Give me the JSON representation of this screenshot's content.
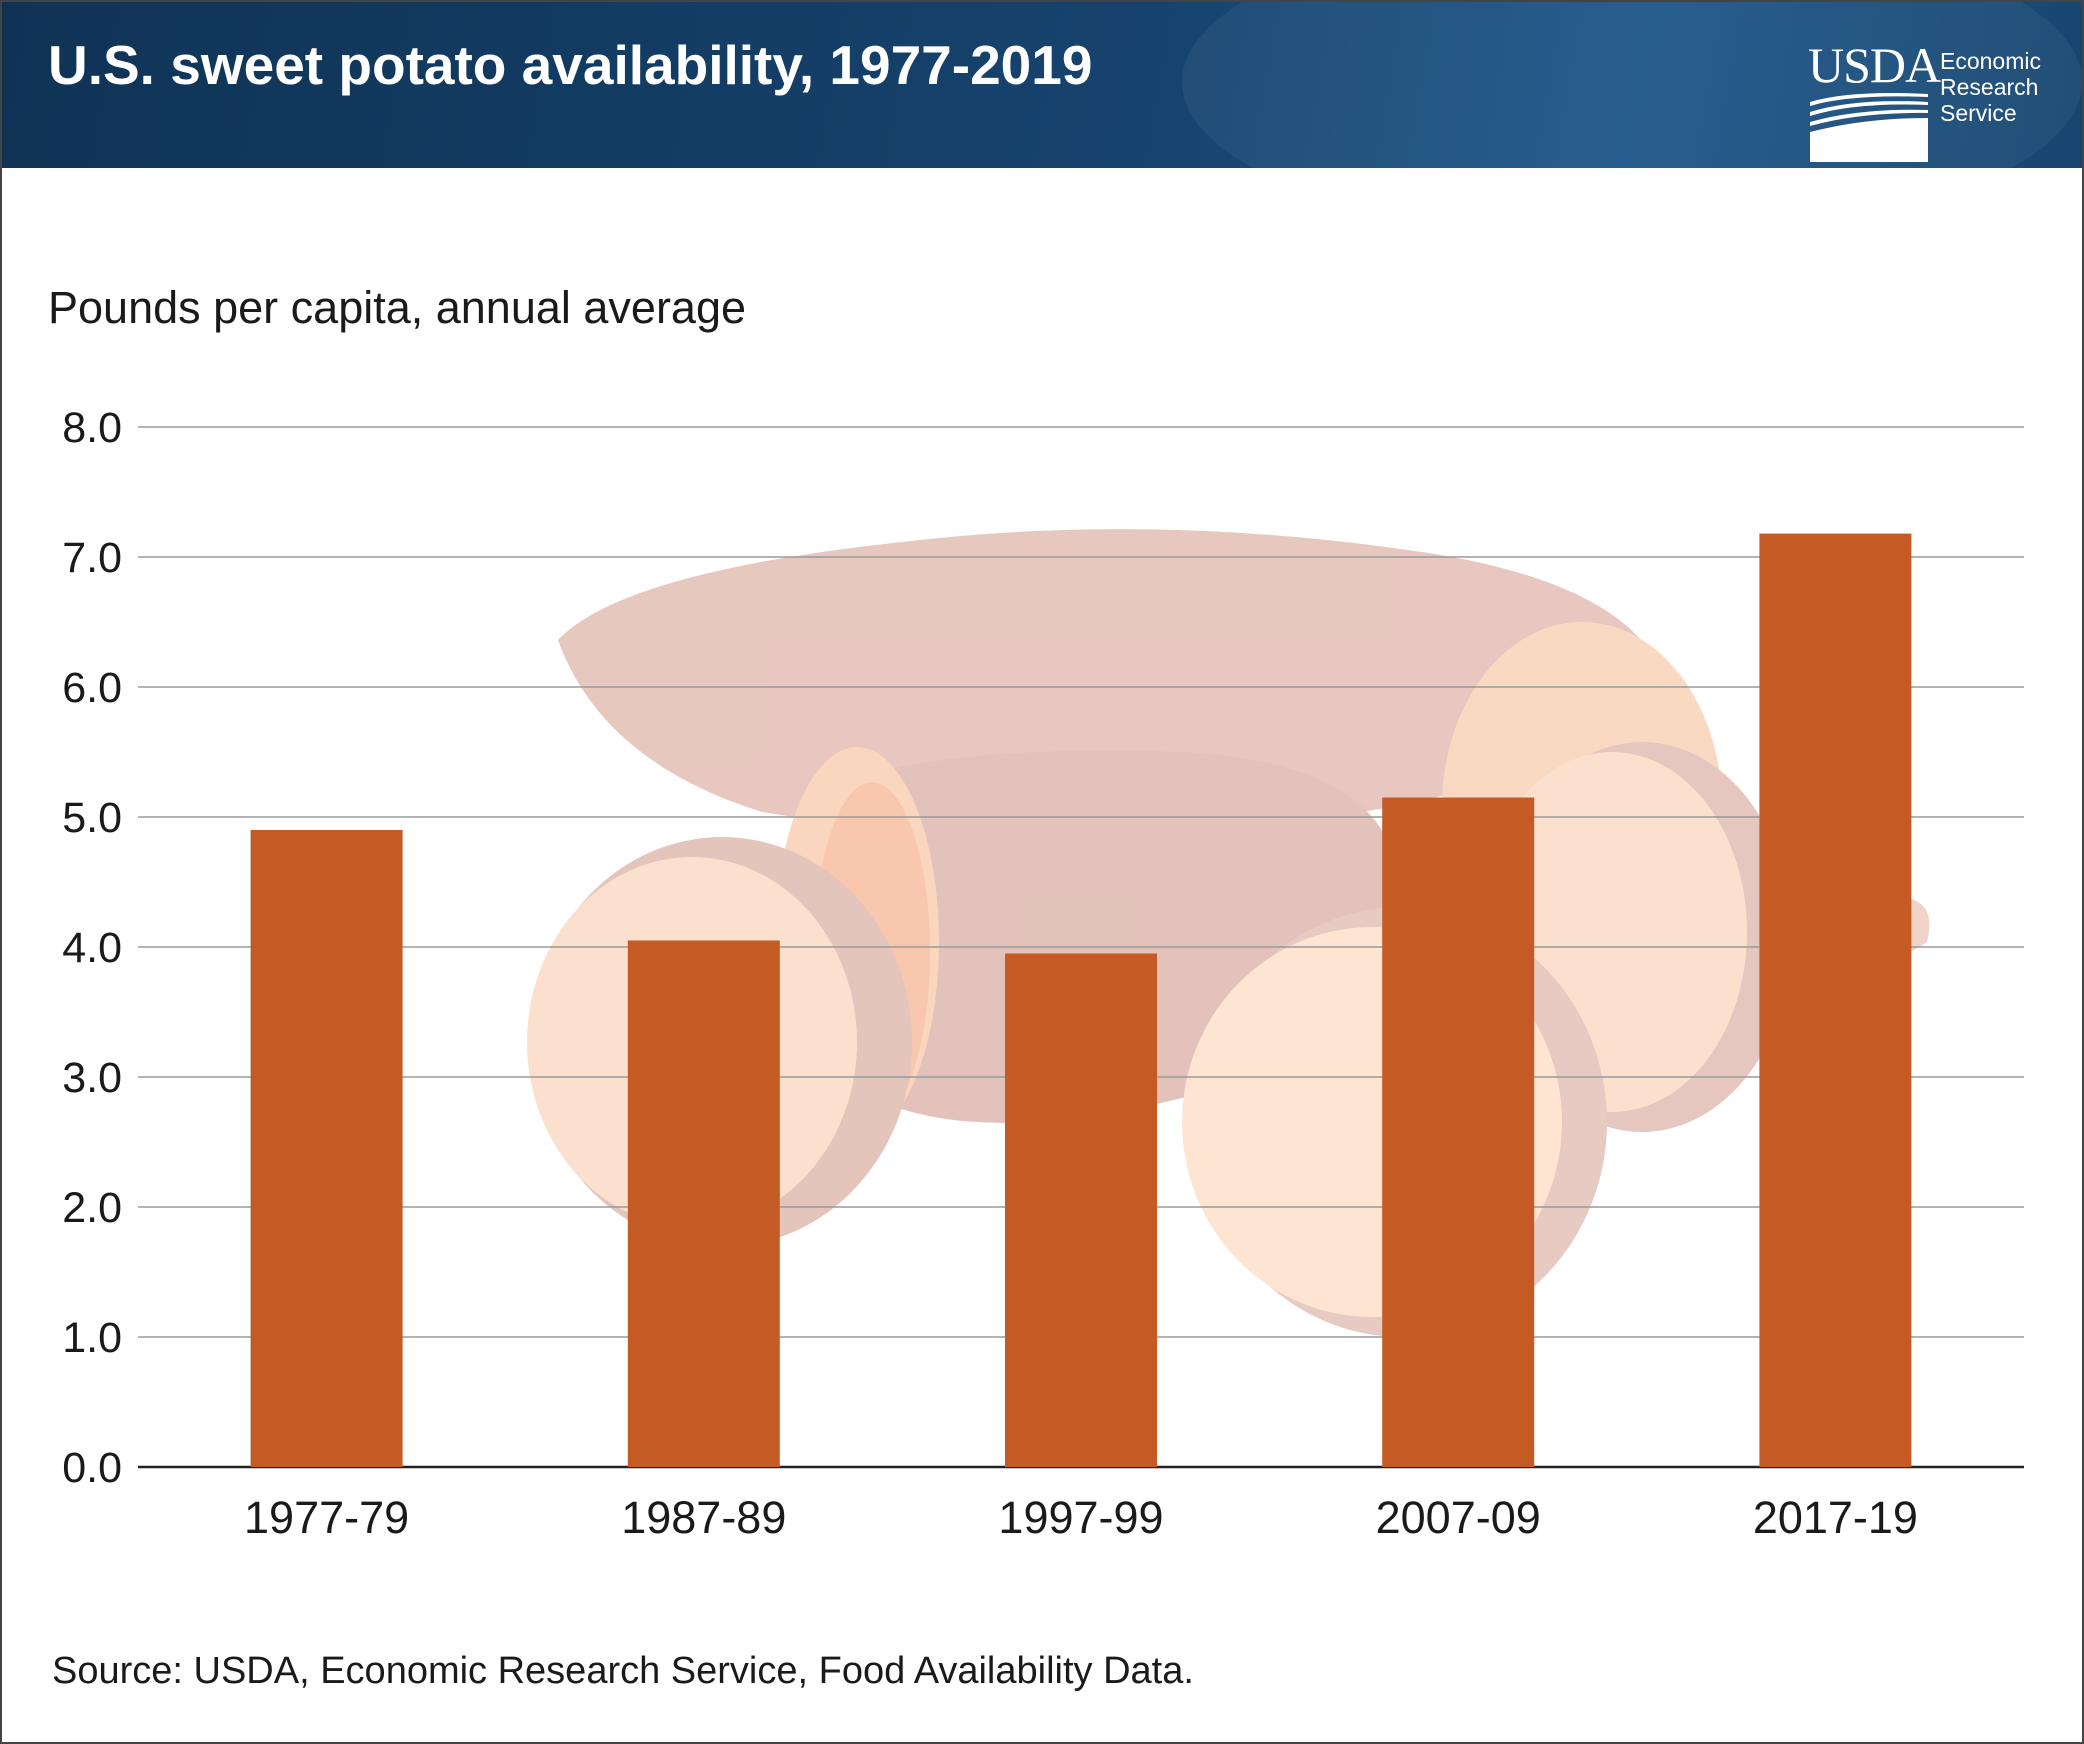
{
  "header": {
    "title": "U.S. sweet potato availability, 1977-2019",
    "logo_usda": "USDA",
    "logo_lines": [
      "Economic",
      "Research",
      "Service"
    ]
  },
  "colors": {
    "bar": "#c45a24",
    "header_bg": "#123a60",
    "grid": "#9a9a9a",
    "axis": "#222222"
  },
  "background_image": "sweet-potato-photo",
  "chart_data": {
    "type": "bar",
    "title": "U.S. sweet potato availability, 1977-2019",
    "ylabel": "Pounds per capita, annual average",
    "xlabel": "",
    "categories": [
      "1977-79",
      "1987-89",
      "1997-99",
      "2007-09",
      "2017-19"
    ],
    "values": [
      4.9,
      4.05,
      3.95,
      5.15,
      7.18
    ],
    "ylim": [
      0,
      8
    ],
    "yticks": [
      "0.0",
      "1.0",
      "2.0",
      "3.0",
      "4.0",
      "5.0",
      "6.0",
      "7.0",
      "8.0"
    ],
    "grid": true,
    "legend": "none"
  },
  "footer": {
    "source": "Source: USDA, Economic Research Service, Food Availability Data."
  }
}
